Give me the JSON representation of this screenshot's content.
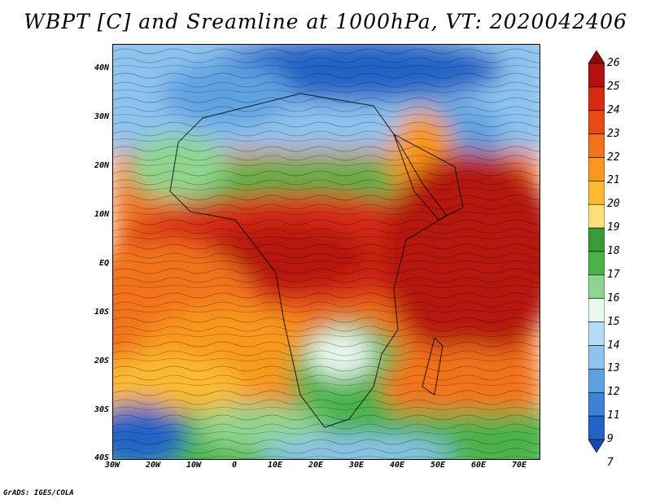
{
  "title": "WBPT [C] and Sreamline at 1000hPa, VT: 2020042406",
  "credit": "GrADS: IGES/COLA",
  "map": {
    "lat_labels": [
      "40N",
      "30N",
      "20N",
      "10N",
      "EQ",
      "10S",
      "20S",
      "30S",
      "40S"
    ],
    "lon_labels": [
      "30W",
      "20W",
      "10W",
      "0",
      "10E",
      "20E",
      "30E",
      "40E",
      "50E",
      "60E",
      "70E"
    ],
    "lon_range": [
      -30,
      75
    ],
    "lat_range": [
      -40,
      45
    ]
  },
  "colorbar": {
    "levels": [
      "26",
      "25",
      "24",
      "23",
      "22",
      "21",
      "20",
      "19",
      "18",
      "17",
      "16",
      "15",
      "14",
      "13",
      "12",
      "11",
      "9",
      "7"
    ],
    "colors": [
      "#8b0a0a",
      "#b5120f",
      "#d62a12",
      "#e84a16",
      "#f2731c",
      "#f8981f",
      "#fbba32",
      "#fde07c",
      "#3a9a3a",
      "#4cb24c",
      "#8fd58f",
      "#e8f8ee",
      "#b5dbf5",
      "#8dc3ee",
      "#5ea2e2",
      "#3d82d6",
      "#2463c6",
      "#1a47b0"
    ]
  }
}
